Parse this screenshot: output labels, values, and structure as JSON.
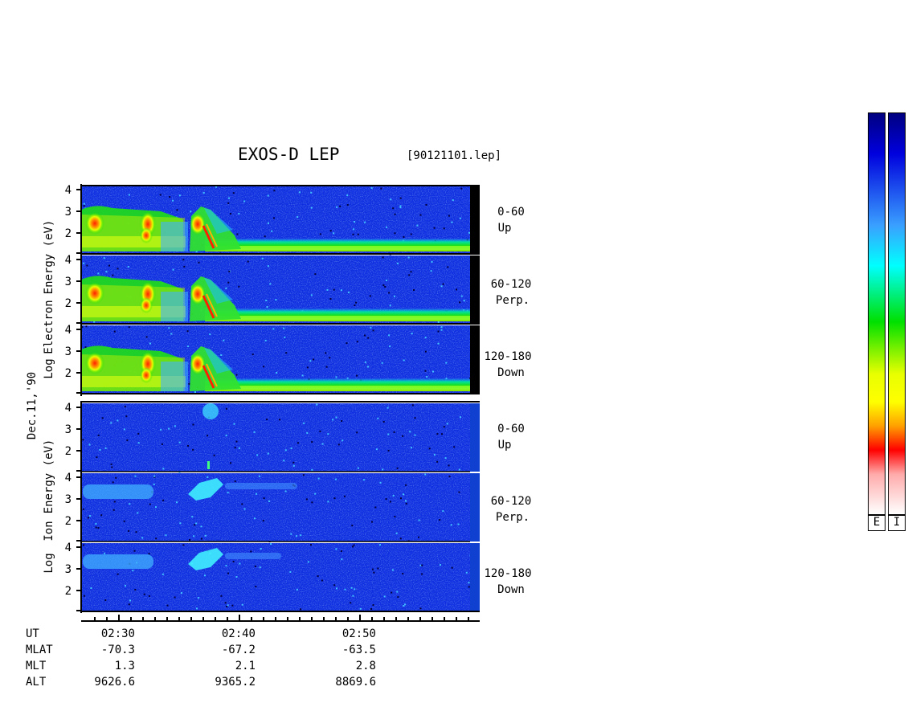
{
  "header": {
    "title": "EXOS-D LEP",
    "file": "[90121101.lep]"
  },
  "chart_data": {
    "type": "heatmap",
    "date_label": "Dec.11,'90",
    "y_ticks": [
      "4",
      "3",
      "2"
    ],
    "groups": [
      {
        "name": "electron",
        "label_lines": [
          "Energy (eV)",
          "Electron",
          "Log"
        ],
        "panels": [
          {
            "pitch": "0-60",
            "dir": "Up"
          },
          {
            "pitch": "60-120",
            "dir": "Perp."
          },
          {
            "pitch": "120-180",
            "dir": "Down"
          }
        ]
      },
      {
        "name": "ion",
        "label_lines": [
          "Energy (eV)",
          "Ion",
          "Log"
        ],
        "panels": [
          {
            "pitch": "0-60",
            "dir": "Up"
          },
          {
            "pitch": "60-120",
            "dir": "Perp."
          },
          {
            "pitch": "120-180",
            "dir": "Down"
          }
        ]
      }
    ],
    "x_axis": {
      "rows": [
        {
          "name": "UT",
          "values": [
            "02:30",
            "02:40",
            "02:50"
          ]
        },
        {
          "name": "MLAT",
          "values": [
            "-70.3",
            "-67.2",
            "-63.5"
          ]
        },
        {
          "name": "MLT",
          "values": [
            "1.3",
            "2.1",
            "2.8"
          ]
        },
        {
          "name": "ALT",
          "values": [
            "9626.6",
            "9365.2",
            "8869.6"
          ]
        }
      ]
    },
    "colorbars": {
      "labels": [
        "E",
        "I"
      ]
    }
  }
}
